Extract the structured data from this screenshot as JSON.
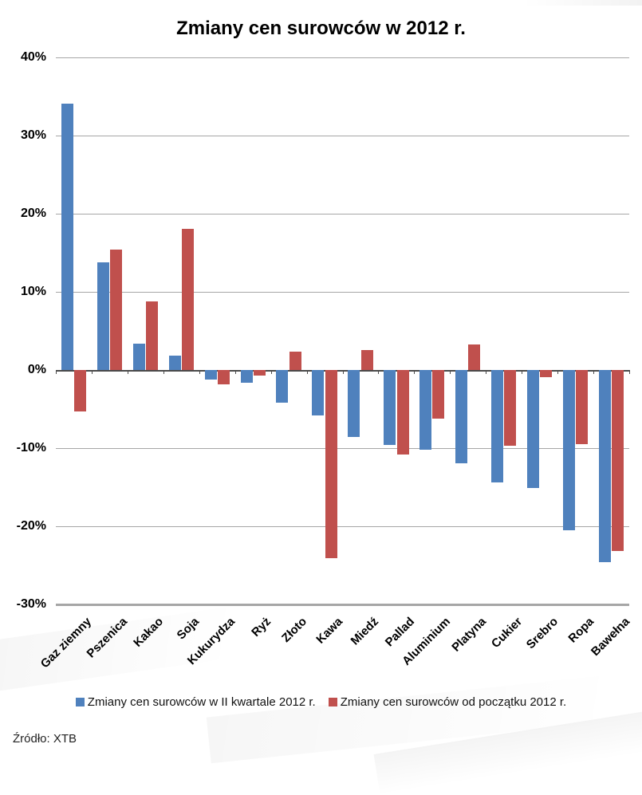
{
  "page": {
    "title": "Zmiany cen surowców w 2012 r.",
    "source": "Źródło: XTB"
  },
  "chart_data": {
    "type": "bar",
    "title": "Zmiany cen surowców w 2012 r.",
    "categories": [
      "Gaz ziemny",
      "Pszenica",
      "Kakao",
      "Soja",
      "Kukurydza",
      "Ryż",
      "Złoto",
      "Kawa",
      "Miedź",
      "Pallad",
      "Aluminium",
      "Platyna",
      "Cukier",
      "Srebro",
      "Ropa",
      "Bawełna"
    ],
    "series": [
      {
        "id": "q2-2012",
        "name": "Zmiany cen surowców w II kwartale 2012 r.",
        "color": "#4F81BD",
        "values": [
          34.1,
          13.8,
          3.4,
          1.8,
          -1.2,
          -1.6,
          -4.2,
          -5.8,
          -8.6,
          -9.6,
          -10.2,
          -11.9,
          -14.4,
          -15.1,
          -20.5,
          -24.6
        ]
      },
      {
        "id": "ytd-2012",
        "name": "Zmiany cen surowców od początku 2012 r.",
        "color": "#C0504D",
        "values": [
          -5.3,
          15.4,
          8.8,
          18.1,
          -1.8,
          -0.7,
          2.3,
          -24.1,
          2.6,
          -10.8,
          -6.2,
          3.3,
          -9.7,
          -0.9,
          -9.5,
          -23.2
        ]
      }
    ],
    "ylim": [
      -30,
      40
    ],
    "ytick_step": 10,
    "ytick_format": "percent",
    "xlabel": "",
    "ylabel": "",
    "grid": true,
    "legend_position": "bottom",
    "source": "Źródło: XTB"
  }
}
